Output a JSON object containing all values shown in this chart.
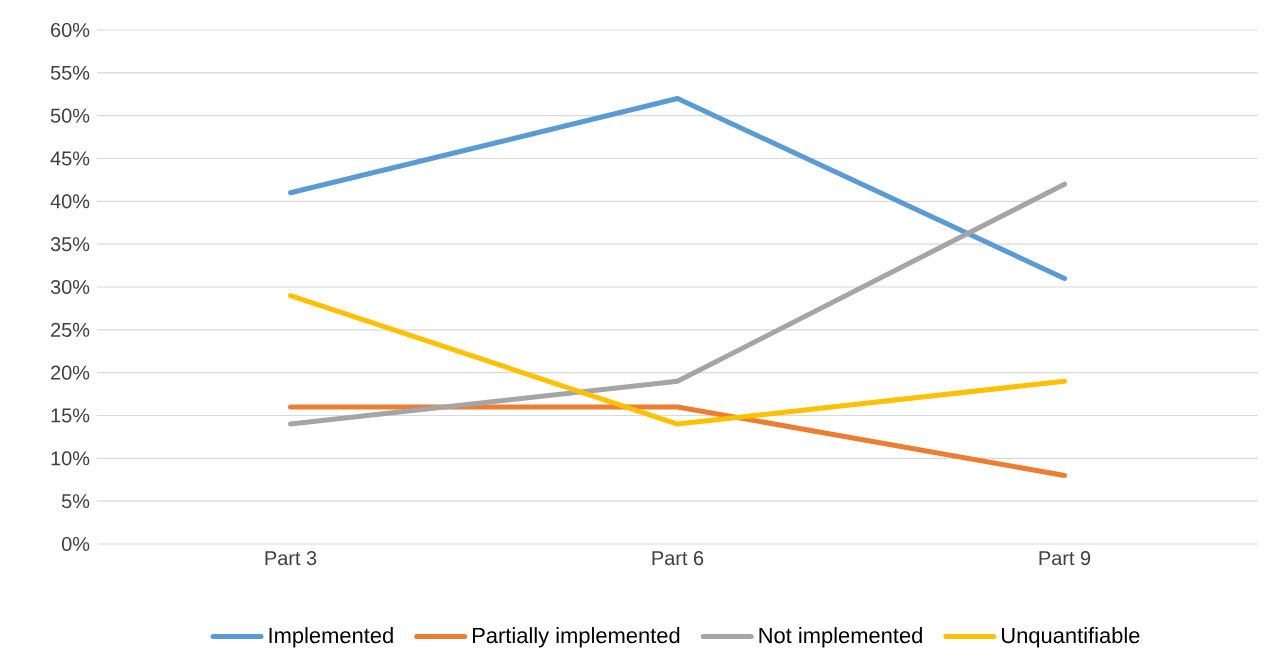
{
  "chart_data": {
    "type": "line",
    "categories": [
      "Part 3",
      "Part 6",
      "Part 9"
    ],
    "series": [
      {
        "name": "Implemented",
        "color": "#5b9bd5",
        "values": [
          41,
          52,
          31
        ]
      },
      {
        "name": "Partially implemented",
        "color": "#ed7d31",
        "values": [
          16,
          16,
          8
        ]
      },
      {
        "name": "Not implemented",
        "color": "#a5a5a5",
        "values": [
          14,
          19,
          42
        ]
      },
      {
        "name": "Unquantifiable",
        "color": "#ffc000",
        "values": [
          29,
          14,
          19
        ]
      }
    ],
    "ylim": [
      0,
      60
    ],
    "yticks": [
      {
        "value": 0,
        "label": "0%"
      },
      {
        "value": 5,
        "label": "5%"
      },
      {
        "value": 10,
        "label": "10%"
      },
      {
        "value": 15,
        "label": "15%"
      },
      {
        "value": 20,
        "label": "20%"
      },
      {
        "value": 25,
        "label": "25%"
      },
      {
        "value": 30,
        "label": "30%"
      },
      {
        "value": 35,
        "label": "35%"
      },
      {
        "value": 40,
        "label": "40%"
      },
      {
        "value": 45,
        "label": "45%"
      },
      {
        "value": 50,
        "label": "50%"
      },
      {
        "value": 55,
        "label": "55%"
      },
      {
        "value": 60,
        "label": "60%"
      }
    ],
    "grid": "y",
    "legend": "bottom",
    "marker": "none",
    "line_style": "solid"
  }
}
